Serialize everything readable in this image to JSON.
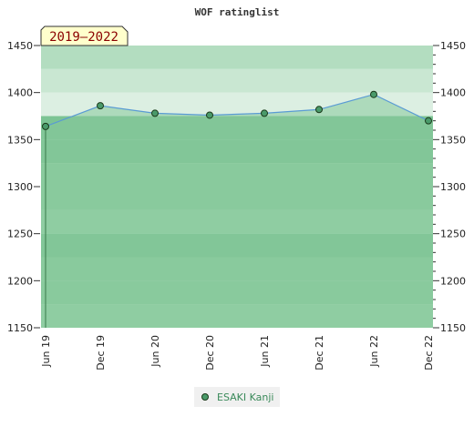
{
  "chart_data": {
    "type": "area",
    "title": "WOF ratinglist",
    "badge": "2019–2022",
    "categories": [
      "Jun 19",
      "Dec 19",
      "Jun 20",
      "Dec 20",
      "Jun 21",
      "Dec 21",
      "Jun 22",
      "Dec 22"
    ],
    "series": [
      {
        "name": "ESAKI Kanji",
        "values": [
          1364,
          1386,
          1378,
          1376,
          1378,
          1382,
          1398,
          1370
        ]
      }
    ],
    "ylim": [
      1150,
      1450
    ],
    "y_ticks": [
      1150,
      1200,
      1250,
      1300,
      1350,
      1400,
      1450
    ],
    "grid": true,
    "legend": "bottom-center",
    "colors": {
      "area": "#86c89a",
      "line": "#5a9bd4",
      "marker": "#4a9a6a",
      "band_dark": "#7cc494",
      "band_mid": "#8ccc9f",
      "band_light": "#99d2aa",
      "band_upper": "#b3ddc0",
      "band_upper_light": "#c9e7d2",
      "band_top_light": "#dcefe2",
      "badge_fill": "#ffffcc",
      "badge_text": "#8b0000"
    }
  }
}
